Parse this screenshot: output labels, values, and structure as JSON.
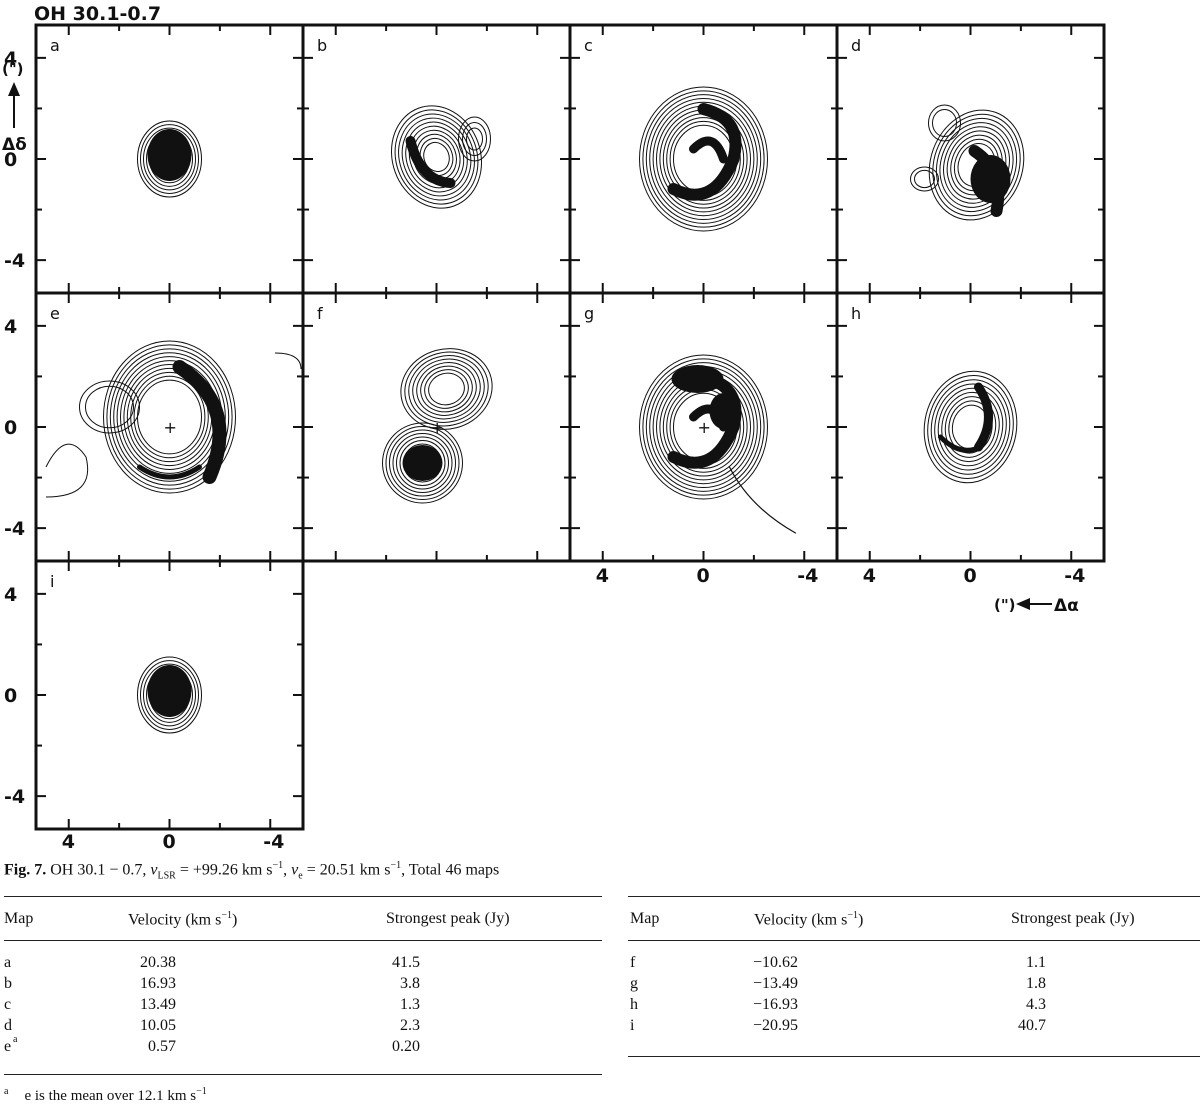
{
  "figure": {
    "title": "OH 30.1-0.7",
    "y_axis_label": "Δδ",
    "y_axis_unit": "(\")",
    "x_axis_label": "Δα",
    "x_axis_unit": "(\")",
    "tick_labels": [
      "4",
      "0",
      "-4"
    ],
    "panels": [
      {
        "id": "a",
        "shape": "compact"
      },
      {
        "id": "b",
        "shape": "crescent"
      },
      {
        "id": "c",
        "shape": "ring"
      },
      {
        "id": "d",
        "shape": "crescent-offset"
      },
      {
        "id": "e",
        "shape": "ring-wide"
      },
      {
        "id": "f",
        "shape": "double"
      },
      {
        "id": "g",
        "shape": "ring"
      },
      {
        "id": "h",
        "shape": "compact-wide"
      },
      {
        "id": "i",
        "shape": "compact"
      }
    ]
  },
  "caption": {
    "label": "Fig. 7.",
    "text_1": "OH 30.1 − 0.7, ",
    "vlsr_sym": "v",
    "vlsr_sub": "LSR",
    "vlsr_val": " = +99.26 km s",
    "ve_sym": "v",
    "ve_sub": "e",
    "ve_val": " = 20.51 km s",
    "exp": "−1",
    "sep": ", ",
    "total": "Total 46 maps"
  },
  "table_left": {
    "headers": {
      "map": "Map",
      "velocity": "Velocity (km s",
      "velocity_exp": "−1",
      "velocity_close": ")",
      "peak": "Strongest peak (Jy)"
    },
    "rows": [
      {
        "map": "a",
        "velocity": "20.38",
        "peak": "41.5"
      },
      {
        "map": "b",
        "velocity": "16.93",
        "peak": "3.8"
      },
      {
        "map": "c",
        "velocity": "13.49",
        "peak": "1.3"
      },
      {
        "map": "d",
        "velocity": "10.05",
        "peak": "2.3"
      },
      {
        "map": "e",
        "map_sup": "a",
        "velocity": "0.57",
        "peak": "0.20"
      }
    ]
  },
  "table_right": {
    "headers": {
      "map": "Map",
      "velocity": "Velocity (km s",
      "velocity_exp": "−1",
      "velocity_close": ")",
      "peak": "Strongest peak (Jy)"
    },
    "rows": [
      {
        "map": "f",
        "velocity": "−10.62",
        "peak": "1.1"
      },
      {
        "map": "g",
        "velocity": "−13.49",
        "peak": "1.8"
      },
      {
        "map": "h",
        "velocity": "−16.93",
        "peak": "4.3"
      },
      {
        "map": "i",
        "velocity": "−20.95",
        "peak": "40.7"
      }
    ]
  },
  "footnote": {
    "mark": "a",
    "text": "e is the mean over 12.1 km s",
    "exp": "−1"
  }
}
